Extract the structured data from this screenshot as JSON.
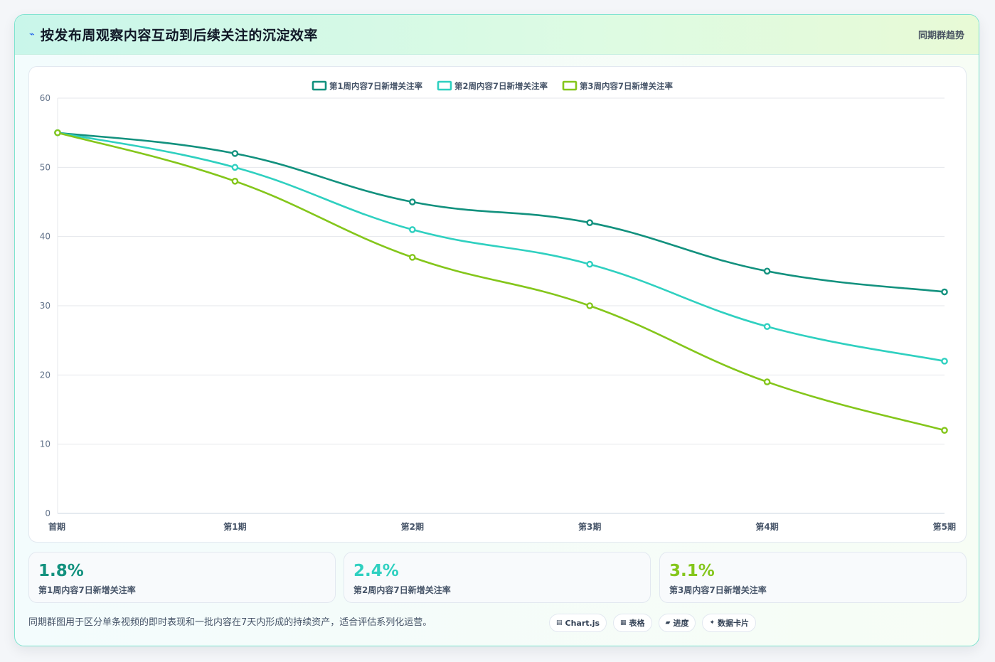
{
  "header": {
    "title": "按发布周观察内容互动到后续关注的沉淀效率",
    "tag": "同期群趋势"
  },
  "chart_data": {
    "type": "line",
    "x": [
      "首期",
      "第1期",
      "第2期",
      "第3期",
      "第4期",
      "第5期"
    ],
    "ylim": [
      0,
      60
    ],
    "yticks": [
      0,
      10,
      20,
      30,
      40,
      50,
      60
    ],
    "grid": true,
    "legend_position": "top-center",
    "series": [
      {
        "name": "第1周内容7日新增关注率",
        "color": "#12917e",
        "values": [
          55,
          52,
          45,
          42,
          35,
          32
        ]
      },
      {
        "name": "第2周内容7日新增关注率",
        "color": "#2fd0c0",
        "values": [
          55,
          50,
          41,
          36,
          27,
          22
        ]
      },
      {
        "name": "第3周内容7日新增关注率",
        "color": "#84c61b",
        "values": [
          55,
          48,
          37,
          30,
          19,
          12
        ]
      }
    ]
  },
  "kpis": [
    {
      "value": "1.8%",
      "label": "第1周内容7日新增关注率",
      "color": "#12917e"
    },
    {
      "value": "2.4%",
      "label": "第2周内容7日新增关注率",
      "color": "#2fd0c0"
    },
    {
      "value": "3.1%",
      "label": "第3周内容7日新增关注率",
      "color": "#84c61b"
    }
  ],
  "footer": {
    "note": "同期群图用于区分单条视频的即时表现和一批内容在7天内形成的持续资产，适合评估系列化运营。",
    "pills": [
      {
        "icon": "chart-icon",
        "glyph": "▤",
        "label": "Chart.js"
      },
      {
        "icon": "table-icon",
        "glyph": "▦",
        "label": "表格"
      },
      {
        "icon": "progress-icon",
        "glyph": "▰",
        "label": "进度"
      },
      {
        "icon": "card-icon",
        "glyph": "✦",
        "label": "数据卡片"
      }
    ]
  }
}
